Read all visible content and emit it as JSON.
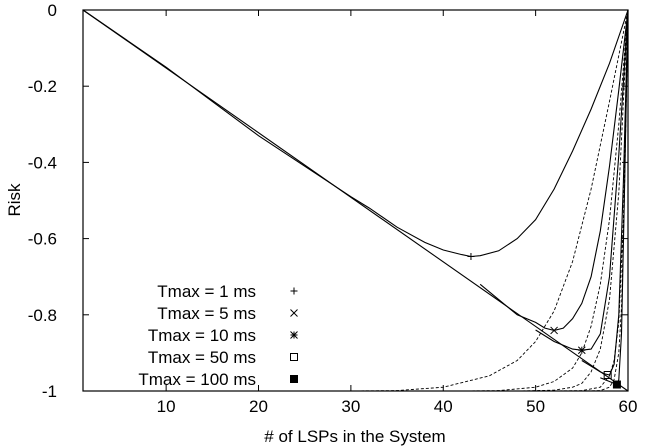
{
  "chart_data": {
    "type": "line",
    "xlabel": "# of LSPs in the System",
    "ylabel": "Risk",
    "xlim": [
      1,
      60
    ],
    "ylim": [
      -1,
      0
    ],
    "x_ticks": [
      10,
      20,
      30,
      40,
      50,
      60
    ],
    "x_tick_labels": [
      "10",
      "20",
      "30",
      "40",
      "50",
      "60"
    ],
    "y_ticks": [
      0,
      -0.2,
      -0.4,
      -0.6,
      -0.8,
      -1
    ],
    "y_tick_labels": [
      "0",
      "-0.2",
      "-0.4",
      "-0.6",
      "-0.8",
      "-1"
    ],
    "grid": false,
    "legend_position": "bottom-left",
    "baseline": {
      "x": [
        1,
        60
      ],
      "y": [
        0,
        -1
      ]
    },
    "series": [
      {
        "name": "Tmax = 1 ms",
        "marker": "+",
        "x": [
          1,
          10,
          20,
          25,
          30,
          32,
          35,
          38,
          40,
          42,
          43,
          44,
          46,
          48,
          50,
          52,
          54,
          56,
          58,
          60
        ],
        "y": [
          0,
          -0.15,
          -0.33,
          -0.41,
          -0.49,
          -0.52,
          -0.57,
          -0.61,
          -0.63,
          -0.642,
          -0.647,
          -0.645,
          -0.632,
          -0.6,
          -0.55,
          -0.47,
          -0.37,
          -0.26,
          -0.14,
          0
        ],
        "marker_x": 43,
        "marker_y": -0.647,
        "dashed": {
          "x": [
            30,
            35,
            40,
            45,
            48,
            50,
            52,
            54,
            56,
            58,
            60
          ],
          "y": [
            -1,
            -0.999,
            -0.99,
            -0.96,
            -0.92,
            -0.87,
            -0.79,
            -0.66,
            -0.47,
            -0.24,
            0
          ]
        }
      },
      {
        "name": "Tmax = 5 ms",
        "marker": "×",
        "x": [
          44,
          46,
          48,
          50,
          51,
          52,
          53,
          54,
          55,
          56,
          57,
          58,
          59,
          60
        ],
        "y": [
          -0.72,
          -0.76,
          -0.8,
          -0.82,
          -0.835,
          -0.841,
          -0.835,
          -0.81,
          -0.77,
          -0.7,
          -0.58,
          -0.41,
          -0.21,
          0
        ],
        "marker_x": 52,
        "marker_y": -0.841,
        "dashed": {
          "x": [
            42,
            46,
            50,
            52,
            54,
            55,
            56,
            57,
            58,
            59,
            60
          ],
          "y": [
            -1,
            -0.999,
            -0.99,
            -0.975,
            -0.94,
            -0.9,
            -0.83,
            -0.72,
            -0.55,
            -0.3,
            0
          ]
        }
      },
      {
        "name": "Tmax = 10 ms",
        "marker": "*",
        "x": [
          50,
          52,
          53,
          54,
          55,
          56,
          57,
          58,
          59,
          60
        ],
        "y": [
          -0.84,
          -0.87,
          -0.88,
          -0.89,
          -0.893,
          -0.89,
          -0.85,
          -0.7,
          -0.38,
          0
        ],
        "marker_x": 55,
        "marker_y": -0.893,
        "dashed": {
          "x": [
            48,
            52,
            54,
            55,
            56,
            57,
            58,
            59,
            60
          ],
          "y": [
            -1,
            -0.998,
            -0.99,
            -0.98,
            -0.95,
            -0.89,
            -0.76,
            -0.48,
            0
          ]
        }
      },
      {
        "name": "Tmax = 50 ms",
        "marker": "□",
        "x": [
          55,
          56,
          57,
          57.5,
          58,
          58.5,
          59,
          59.5,
          60
        ],
        "y": [
          -0.92,
          -0.935,
          -0.95,
          -0.955,
          -0.958,
          -0.93,
          -0.8,
          -0.45,
          0
        ],
        "marker_x": 57.8,
        "marker_y": -0.958,
        "dashed": {
          "x": [
            52,
            55,
            57,
            58,
            58.5,
            59,
            59.5,
            60
          ],
          "y": [
            -1,
            -0.999,
            -0.99,
            -0.96,
            -0.92,
            -0.82,
            -0.55,
            0
          ]
        }
      },
      {
        "name": "Tmax = 100 ms",
        "marker": "■",
        "x": [
          57,
          58,
          58.5,
          58.8,
          59,
          59.3,
          59.6,
          60
        ],
        "y": [
          -0.965,
          -0.975,
          -0.98,
          -0.983,
          -0.97,
          -0.85,
          -0.5,
          0
        ],
        "marker_x": 58.8,
        "marker_y": -0.983,
        "dashed": {
          "x": [
            55,
            57,
            58,
            58.5,
            59,
            59.3,
            59.6,
            60
          ],
          "y": [
            -1,
            -0.999,
            -0.99,
            -0.97,
            -0.9,
            -0.78,
            -0.5,
            0
          ]
        }
      }
    ]
  }
}
